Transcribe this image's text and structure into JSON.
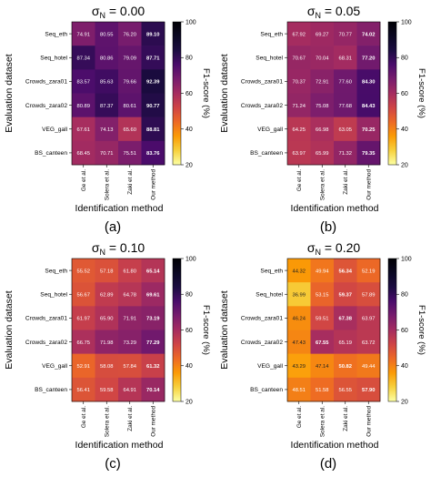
{
  "chart_data": [
    {
      "type": "heatmap",
      "panel_label": "(a)",
      "title_symbol": "σ",
      "title_subscript": "N",
      "title_value": " = 0.00",
      "xlabel": "Identification method",
      "ylabel": "Evaluation dataset",
      "colorbar_label": "F1-score (%)",
      "colorbar_range": [
        20,
        100
      ],
      "colorbar_ticks": [
        "20",
        "40",
        "60",
        "80",
        "100"
      ],
      "colormap": "inferno_r",
      "x_categories": [
        "Ge et al.",
        "Solera et al.",
        "Zaki et al.",
        "Our method"
      ],
      "y_categories": [
        "Seq_eth",
        "Seq_hotel",
        "Crowds_zara01",
        "Crowds_zara02",
        "VEG_gall",
        "BS_canteen"
      ],
      "values": [
        [
          74.91,
          80.55,
          76.2,
          89.1
        ],
        [
          87.34,
          80.86,
          79.09,
          87.71
        ],
        [
          83.57,
          85.63,
          79.66,
          92.39
        ],
        [
          80.89,
          87.37,
          80.61,
          90.77
        ],
        [
          67.61,
          74.13,
          65.6,
          88.81
        ],
        [
          68.45,
          70.71,
          75.51,
          83.76
        ]
      ],
      "bold_column": 3
    },
    {
      "type": "heatmap",
      "panel_label": "(b)",
      "title_symbol": "σ",
      "title_subscript": "N",
      "title_value": " = 0.05",
      "xlabel": "Identification method",
      "ylabel": "Evaluation dataset",
      "colorbar_label": "F1-score (%)",
      "colorbar_range": [
        20,
        100
      ],
      "colorbar_ticks": [
        "20",
        "40",
        "60",
        "80",
        "100"
      ],
      "colormap": "inferno_r",
      "x_categories": [
        "Ge et al.",
        "Solera et al.",
        "Zaki et al.",
        "Our method"
      ],
      "y_categories": [
        "Seq_eth",
        "Seq_hotel",
        "Crowds_zara01",
        "Crowds_zara02",
        "VEG_gall",
        "BS_canteen"
      ],
      "values": [
        [
          67.92,
          69.27,
          70.77,
          74.02
        ],
        [
          70.67,
          70.04,
          68.31,
          77.2
        ],
        [
          70.37,
          72.91,
          77.6,
          84.3
        ],
        [
          71.24,
          75.08,
          77.68,
          84.43
        ],
        [
          64.25,
          66.98,
          63.05,
          70.25
        ],
        [
          63.97,
          65.99,
          71.32,
          79.35
        ]
      ],
      "bold_column": 3
    },
    {
      "type": "heatmap",
      "panel_label": "(c)",
      "title_symbol": "σ",
      "title_subscript": "N",
      "title_value": " = 0.10",
      "xlabel": "Identification method",
      "ylabel": "Evaluation dataset",
      "colorbar_label": "F1-score (%)",
      "colorbar_range": [
        20,
        100
      ],
      "colorbar_ticks": [
        "20",
        "40",
        "60",
        "80",
        "100"
      ],
      "colormap": "inferno_r",
      "x_categories": [
        "Ge et al.",
        "Solera et al.",
        "Zaki et al.",
        "Our method"
      ],
      "y_categories": [
        "Seq_eth",
        "Seq_hotel",
        "Crowds_zara01",
        "Crowds_zara02",
        "VEG_gall",
        "BS_canteen"
      ],
      "values": [
        [
          55.52,
          57.18,
          61.8,
          65.14
        ],
        [
          56.67,
          62.89,
          64.78,
          69.61
        ],
        [
          61.97,
          65.9,
          71.91,
          73.19
        ],
        [
          66.75,
          71.98,
          73.29,
          77.29
        ],
        [
          52.91,
          58.08,
          57.84,
          61.32
        ],
        [
          56.41,
          59.58,
          64.91,
          70.14
        ]
      ],
      "bold_column": 3
    },
    {
      "type": "heatmap",
      "panel_label": "(d)",
      "title_symbol": "σ",
      "title_subscript": "N",
      "title_value": " = 0.20",
      "xlabel": "Identification method",
      "ylabel": "Evaluation dataset",
      "colorbar_label": "F1-score (%)",
      "colorbar_range": [
        20,
        100
      ],
      "colorbar_ticks": [
        "20",
        "40",
        "60",
        "80",
        "100"
      ],
      "colormap": "inferno_r",
      "x_categories": [
        "Ge et al.",
        "Solera et al.",
        "Zaki et al.",
        "Our method"
      ],
      "y_categories": [
        "Seq_eth",
        "Seq_hotel",
        "Crowds_zara01",
        "Crowds_zara02",
        "VEG_gall",
        "BS_canteen"
      ],
      "values": [
        [
          44.32,
          49.94,
          56.34,
          52.19
        ],
        [
          36.99,
          53.15,
          59.37,
          57.89
        ],
        [
          46.24,
          59.51,
          67.38,
          63.97
        ],
        [
          47.43,
          67.55,
          65.19,
          63.72
        ],
        [
          43.29,
          47.14,
          50.82,
          49.44
        ],
        [
          48.51,
          51.58,
          56.55,
          57.9
        ]
      ],
      "bold_cells": [
        [
          0,
          2
        ],
        [
          1,
          2
        ],
        [
          2,
          2
        ],
        [
          3,
          1
        ],
        [
          4,
          2
        ],
        [
          5,
          3
        ]
      ]
    }
  ]
}
